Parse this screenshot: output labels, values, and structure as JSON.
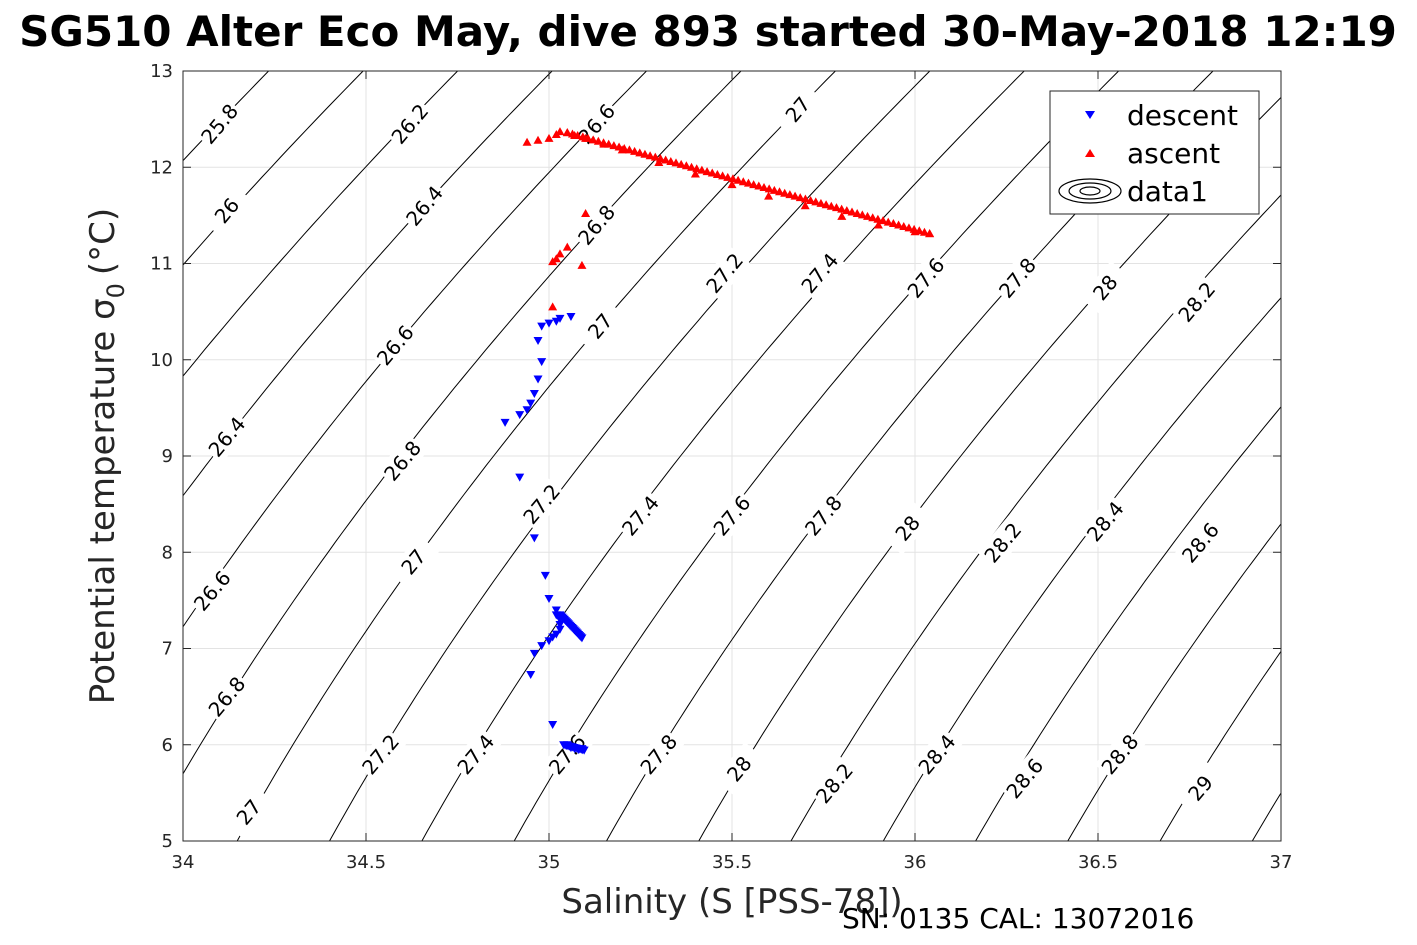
{
  "chart_data": {
    "type": "scatter",
    "title": "SG510 Alter Eco May, dive 893 started 30-May-2018 12:19",
    "xlabel": "Salinity (S [PSS-78])",
    "ylabel": "Potential temperature σ",
    "ylabel_subscript": "0",
    "ylabel_unit": "(°C)",
    "xlim": [
      34,
      37
    ],
    "ylim": [
      5,
      13
    ],
    "x_ticks": [
      "34",
      "34.5",
      "35",
      "35.5",
      "36",
      "36.5",
      "37"
    ],
    "y_ticks": [
      "5",
      "6",
      "7",
      "8",
      "9",
      "10",
      "11",
      "12",
      "13"
    ],
    "x_tick_values": [
      34,
      34.5,
      35,
      35.5,
      36,
      36.5,
      37
    ],
    "y_tick_values": [
      5,
      6,
      7,
      8,
      9,
      10,
      11,
      12,
      13
    ],
    "grid": true,
    "legend_position": "top-right",
    "legend": [
      "descent",
      "ascent",
      "data1"
    ],
    "footer": "SN: 0135  CAL: 13072016",
    "contour_levels": [
      25.8,
      26,
      26.2,
      26.4,
      26.6,
      26.8,
      27,
      27.2,
      27.4,
      27.6,
      27.8,
      28,
      28.2,
      28.4,
      28.6,
      28.8,
      29
    ],
    "contour_labels": [
      {
        "text": "25.8",
        "s": 34.1,
        "t": 12.45
      },
      {
        "text": "26.2",
        "s": 34.62,
        "t": 12.45
      },
      {
        "text": "26.6",
        "s": 35.13,
        "t": 12.45
      },
      {
        "text": "27",
        "s": 35.68,
        "t": 12.6
      },
      {
        "text": "26",
        "s": 34.12,
        "t": 11.55
      },
      {
        "text": "26.4",
        "s": 34.66,
        "t": 11.6
      },
      {
        "text": "26.8",
        "s": 35.13,
        "t": 11.4
      },
      {
        "text": "27.2",
        "s": 35.48,
        "t": 10.9
      },
      {
        "text": "27.4",
        "s": 35.74,
        "t": 10.9
      },
      {
        "text": "27.6",
        "s": 36.03,
        "t": 10.85
      },
      {
        "text": "27.8",
        "s": 36.28,
        "t": 10.85
      },
      {
        "text": "28",
        "s": 36.52,
        "t": 10.75
      },
      {
        "text": "28.2",
        "s": 36.77,
        "t": 10.6
      },
      {
        "text": "27",
        "s": 35.14,
        "t": 10.35
      },
      {
        "text": "26.6",
        "s": 34.58,
        "t": 10.15
      },
      {
        "text": "26.4",
        "s": 34.12,
        "t": 9.2
      },
      {
        "text": "26.8",
        "s": 34.6,
        "t": 8.95
      },
      {
        "text": "27.2",
        "s": 34.98,
        "t": 8.5
      },
      {
        "text": "27.4",
        "s": 35.25,
        "t": 8.38
      },
      {
        "text": "27.6",
        "s": 35.5,
        "t": 8.38
      },
      {
        "text": "27.8",
        "s": 35.75,
        "t": 8.38
      },
      {
        "text": "28",
        "s": 35.98,
        "t": 8.25
      },
      {
        "text": "28.2",
        "s": 36.24,
        "t": 8.1
      },
      {
        "text": "28.4",
        "s": 36.52,
        "t": 8.32
      },
      {
        "text": "28.6",
        "s": 36.78,
        "t": 8.1
      },
      {
        "text": "27",
        "s": 34.63,
        "t": 7.9
      },
      {
        "text": "26.6",
        "s": 34.08,
        "t": 7.6
      },
      {
        "text": "26.8",
        "s": 34.12,
        "t": 6.5
      },
      {
        "text": "27.2",
        "s": 34.54,
        "t": 5.9
      },
      {
        "text": "27.4",
        "s": 34.8,
        "t": 5.9
      },
      {
        "text": "27.6",
        "s": 35.05,
        "t": 5.9
      },
      {
        "text": "27.8",
        "s": 35.3,
        "t": 5.9
      },
      {
        "text": "28",
        "s": 35.52,
        "t": 5.75
      },
      {
        "text": "28.2",
        "s": 35.78,
        "t": 5.6
      },
      {
        "text": "28.4",
        "s": 36.06,
        "t": 5.9
      },
      {
        "text": "28.6",
        "s": 36.3,
        "t": 5.65
      },
      {
        "text": "28.8",
        "s": 36.56,
        "t": 5.9
      },
      {
        "text": "29",
        "s": 36.78,
        "t": 5.55
      },
      {
        "text": "27",
        "s": 34.18,
        "t": 5.3
      }
    ],
    "series": [
      {
        "name": "descent",
        "color": "#0000ff",
        "marker": "triangle-down",
        "x": [
          35.06,
          35.03,
          35.02,
          35.0,
          34.98,
          34.97,
          34.98,
          34.97,
          34.96,
          34.95,
          34.94,
          34.92,
          34.88,
          34.92,
          34.96,
          34.99,
          35.0,
          35.02,
          35.02,
          35.03,
          35.03,
          35.03,
          35.02,
          35.01,
          35.0,
          34.98,
          34.96,
          34.95,
          35.01,
          35.05,
          35.06,
          35.07,
          35.08,
          35.09
        ],
        "y": [
          10.45,
          10.43,
          10.4,
          10.38,
          10.35,
          10.2,
          9.98,
          9.8,
          9.65,
          9.55,
          9.48,
          9.43,
          9.35,
          8.78,
          8.15,
          7.76,
          7.52,
          7.4,
          7.35,
          7.3,
          7.25,
          7.2,
          7.15,
          7.12,
          7.08,
          7.03,
          6.95,
          6.73,
          6.21,
          6.0,
          5.97,
          5.96,
          5.95,
          5.96
        ]
      },
      {
        "name": "ascent",
        "color": "#ff0000",
        "marker": "triangle-up",
        "x": [
          34.94,
          34.97,
          35.0,
          35.02,
          35.03,
          35.05,
          35.07,
          35.1,
          35.15,
          35.2,
          35.3,
          35.4,
          35.5,
          35.6,
          35.7,
          35.8,
          35.9,
          36.0,
          36.04,
          35.05,
          35.03,
          35.02,
          35.01,
          35.1,
          35.09,
          35.01
        ],
        "y": [
          12.26,
          12.28,
          12.3,
          12.34,
          12.37,
          12.36,
          12.33,
          12.3,
          12.24,
          12.18,
          12.05,
          11.93,
          11.82,
          11.7,
          11.6,
          11.49,
          11.4,
          11.33,
          11.31,
          11.17,
          11.1,
          11.05,
          11.02,
          11.52,
          10.98,
          10.55
        ]
      }
    ]
  }
}
